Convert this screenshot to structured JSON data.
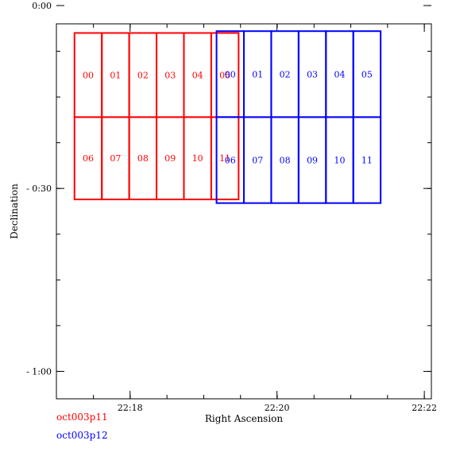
{
  "chart_data": {
    "type": "scatter",
    "title": "",
    "xlabel": "Right Ascension",
    "ylabel": "Declination",
    "xlim": [
      22.2833,
      22.3683
    ],
    "ylim": [
      -1.075,
      -0.05
    ],
    "x_ticks": [
      {
        "value": 22.3,
        "label": "22:18"
      },
      {
        "value": 22.3333,
        "label": "22:20"
      },
      {
        "value": 22.3667,
        "label": "22:22"
      }
    ],
    "y_ticks": [
      {
        "value": -0.5,
        "label": "- 0:30"
      },
      {
        "value": 0.0,
        "label": "0:00"
      },
      {
        "value": -1.0,
        "label": "- 1:00"
      }
    ],
    "series": [
      {
        "name": "oct003p11",
        "color": "#ff0000",
        "chips": [
          {
            "id": "00",
            "bounds": [
              22.2874,
              22.2936,
              -0.075,
              -0.305
            ]
          },
          {
            "id": "01",
            "bounds": [
              22.2936,
              22.2998,
              -0.075,
              -0.305
            ]
          },
          {
            "id": "02",
            "bounds": [
              22.2998,
              22.306,
              -0.075,
              -0.305
            ]
          },
          {
            "id": "03",
            "bounds": [
              22.306,
              22.3122,
              -0.075,
              -0.305
            ]
          },
          {
            "id": "04",
            "bounds": [
              22.3122,
              22.3184,
              -0.075,
              -0.305
            ]
          },
          {
            "id": "05",
            "bounds": [
              22.3184,
              22.3246,
              -0.075,
              -0.305
            ]
          },
          {
            "id": "06",
            "bounds": [
              22.2874,
              22.2936,
              -0.305,
              -0.53
            ]
          },
          {
            "id": "07",
            "bounds": [
              22.2936,
              22.2998,
              -0.305,
              -0.53
            ]
          },
          {
            "id": "08",
            "bounds": [
              22.2998,
              22.306,
              -0.305,
              -0.53
            ]
          },
          {
            "id": "09",
            "bounds": [
              22.306,
              22.3122,
              -0.305,
              -0.53
            ]
          },
          {
            "id": "10",
            "bounds": [
              22.3122,
              22.3184,
              -0.305,
              -0.53
            ]
          },
          {
            "id": "11",
            "bounds": [
              22.3184,
              22.3246,
              -0.305,
              -0.53
            ]
          }
        ]
      },
      {
        "name": "oct003p12",
        "color": "#0000ff",
        "chips": [
          {
            "id": "00",
            "bounds": [
              22.3196,
              22.3258,
              -0.07,
              -0.305
            ]
          },
          {
            "id": "01",
            "bounds": [
              22.3258,
              22.332,
              -0.07,
              -0.305
            ]
          },
          {
            "id": "02",
            "bounds": [
              22.332,
              22.3382,
              -0.07,
              -0.305
            ]
          },
          {
            "id": "03",
            "bounds": [
              22.3382,
              22.3444,
              -0.07,
              -0.305
            ]
          },
          {
            "id": "04",
            "bounds": [
              22.3444,
              22.3506,
              -0.07,
              -0.305
            ]
          },
          {
            "id": "05",
            "bounds": [
              22.3506,
              22.3568,
              -0.07,
              -0.305
            ]
          },
          {
            "id": "06",
            "bounds": [
              22.3196,
              22.3258,
              -0.305,
              -0.54
            ]
          },
          {
            "id": "07",
            "bounds": [
              22.3258,
              22.332,
              -0.305,
              -0.54
            ]
          },
          {
            "id": "08",
            "bounds": [
              22.332,
              22.3382,
              -0.305,
              -0.54
            ]
          },
          {
            "id": "09",
            "bounds": [
              22.3382,
              22.3444,
              -0.305,
              -0.54
            ]
          },
          {
            "id": "10",
            "bounds": [
              22.3444,
              22.3506,
              -0.305,
              -0.54
            ]
          },
          {
            "id": "11",
            "bounds": [
              22.3506,
              22.3568,
              -0.305,
              -0.54
            ]
          }
        ]
      }
    ],
    "legend": [
      {
        "label": "oct003p11",
        "color": "#ff0000"
      },
      {
        "label": "oct003p12",
        "color": "#0000ff"
      }
    ]
  }
}
